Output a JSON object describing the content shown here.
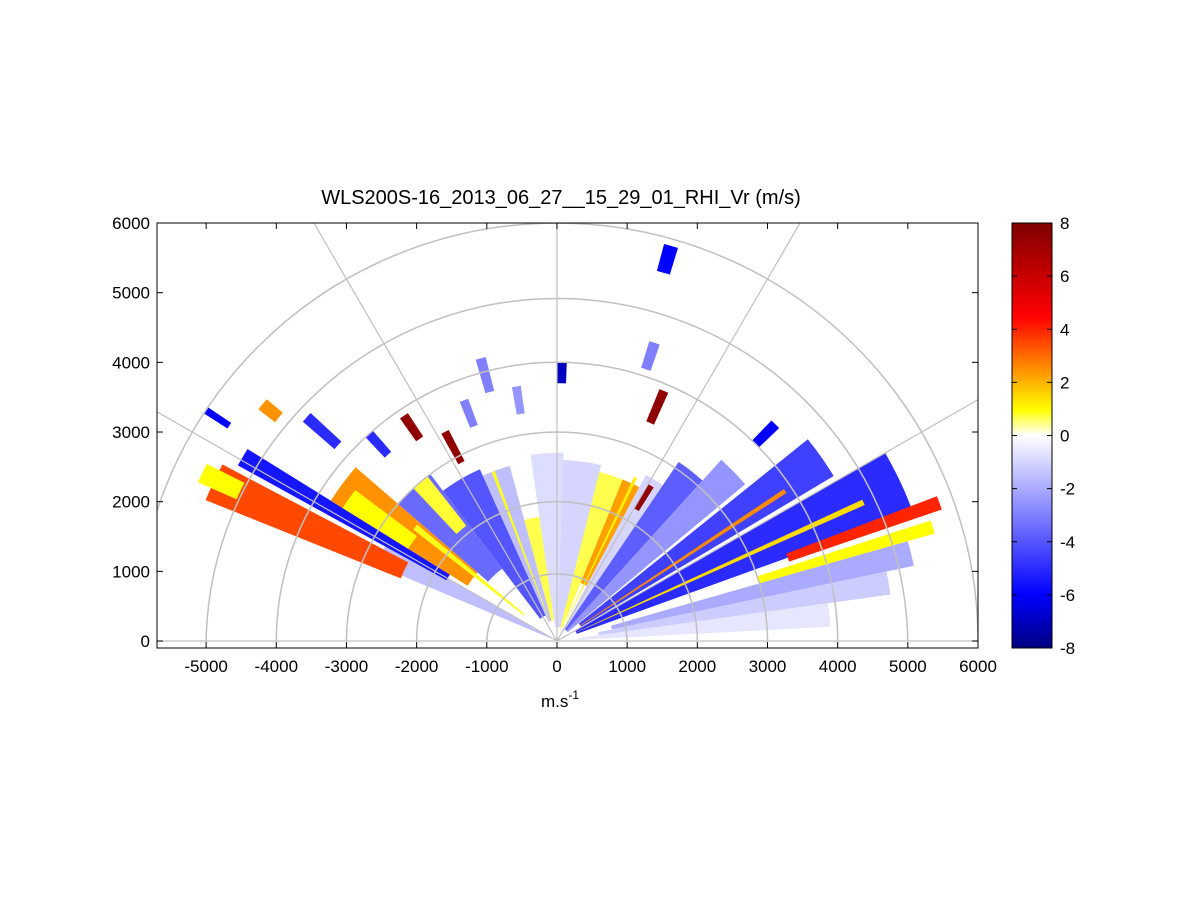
{
  "chart_data": {
    "type": "heatmap",
    "subtype": "polar-rhi",
    "title": "WLS200S-16_2013_06_27__15_29_01_RHI_Vr (m/s)",
    "xlabel_base": "m.s",
    "xlabel_exp": "-1",
    "xlim": [
      -5700,
      6000
    ],
    "ylim": [
      -100,
      6000
    ],
    "xticks": [
      -5000,
      -4000,
      -3000,
      -2000,
      -1000,
      0,
      1000,
      2000,
      3000,
      4000,
      5000,
      6000
    ],
    "yticks": [
      0,
      1000,
      2000,
      3000,
      4000,
      5000,
      6000
    ],
    "range_rings": [
      1000,
      2000,
      3000,
      4000,
      5000,
      6000
    ],
    "spoke_angles_deg": [
      0,
      30,
      60,
      90,
      120,
      150,
      180
    ],
    "grid": true,
    "colorbar": {
      "min": -8,
      "max": 8,
      "ticks": [
        -8,
        -6,
        -4,
        -2,
        0,
        2,
        4,
        6,
        8
      ],
      "colors": [
        "#00007f",
        "#0000ff",
        "#ffffff",
        "#ffff00",
        "#ff0000",
        "#7f0000"
      ]
    },
    "sectors": [
      {
        "az": [
          150,
          157
        ],
        "r": [
          100,
          2800
        ],
        "v": -1.5
      },
      {
        "az": [
          152,
          158
        ],
        "r": [
          2400,
          5400
        ],
        "v": 3.5
      },
      {
        "az": [
          153,
          156
        ],
        "r": [
          5000,
          5600
        ],
        "v": 1
      },
      {
        "az": [
          148,
          151
        ],
        "r": [
          1800,
          5200
        ],
        "v": -5.5
      },
      {
        "az": [
          139,
          148
        ],
        "r": [
          1500,
          3800
        ],
        "v": 2.5
      },
      {
        "az": [
          143,
          148
        ],
        "r": [
          2500,
          3600
        ],
        "v": 1
      },
      {
        "az": [
          127,
          139
        ],
        "r": [
          1300,
          3000
        ],
        "v": -3.5
      },
      {
        "az": [
          128,
          133
        ],
        "r": [
          2100,
          3000
        ],
        "v": 0.8
      },
      {
        "az": [
          114,
          127
        ],
        "r": [
          400,
          2700
        ],
        "v": -4
      },
      {
        "az": [
          105,
          114
        ],
        "r": [
          300,
          2600
        ],
        "v": -1.5
      },
      {
        "az": [
          98,
          105
        ],
        "r": [
          300,
          1800
        ],
        "v": 0.7
      },
      {
        "az": [
          88,
          98
        ],
        "r": [
          200,
          2700
        ],
        "v": -0.8
      },
      {
        "az": [
          76,
          88
        ],
        "r": [
          200,
          2600
        ],
        "v": -1
      },
      {
        "az": [
          68,
          76
        ],
        "r": [
          200,
          2500
        ],
        "v": 0.7
      },
      {
        "az": [
          62,
          68
        ],
        "r": [
          900,
          2500
        ],
        "v": 2.3
      },
      {
        "az": [
          56,
          62
        ],
        "r": [
          200,
          2700
        ],
        "v": -1
      },
      {
        "az": [
          48,
          56
        ],
        "r": [
          200,
          3100
        ],
        "v": -3.8
      },
      {
        "az": [
          40,
          48
        ],
        "r": [
          200,
          3500
        ],
        "v": -2.5
      },
      {
        "az": [
          31,
          39
        ],
        "r": [
          400,
          4600
        ],
        "v": -4.5
      },
      {
        "az": [
          20,
          30
        ],
        "r": [
          300,
          5400
        ],
        "v": -5
      },
      {
        "az": [
          19,
          21
        ],
        "r": [
          3500,
          5800
        ],
        "v": 4
      },
      {
        "az": [
          16,
          18
        ],
        "r": [
          3000,
          5600
        ],
        "v": 1
      },
      {
        "az": [
          12,
          16
        ],
        "r": [
          800,
          5200
        ],
        "v": -2
      },
      {
        "az": [
          8,
          12
        ],
        "r": [
          600,
          4800
        ],
        "v": -1.2
      },
      {
        "az": [
          3,
          8
        ],
        "r": [
          300,
          3900
        ],
        "v": -0.6
      },
      {
        "az": [
          140,
          142
        ],
        "r": [
          600,
          2600
        ],
        "v": 0.9
      },
      {
        "az": [
          110,
          111
        ],
        "r": [
          300,
          2600
        ],
        "v": 0.9
      },
      {
        "az": [
          64,
          65
        ],
        "r": [
          300,
          2600
        ],
        "v": 1.2
      },
      {
        "az": [
          24,
          25
        ],
        "r": [
          300,
          4800
        ],
        "v": 1.5
      },
      {
        "az": [
          33,
          34
        ],
        "r": [
          400,
          3900
        ],
        "v": 2.6
      },
      {
        "az": [
          131,
          133
        ],
        "r": [
          3600,
          4000
        ],
        "v": -5
      },
      {
        "az": [
          123,
          125
        ],
        "r": [
          3500,
          3900
        ],
        "v": 7.5
      },
      {
        "az": [
          117,
          119
        ],
        "r": [
          2900,
          3400
        ],
        "v": 7.5
      },
      {
        "az": [
          110,
          112
        ],
        "r": [
          3300,
          3700
        ],
        "v": -3
      },
      {
        "az": [
          104,
          106
        ],
        "r": [
          3700,
          4200
        ],
        "v": -3
      },
      {
        "az": [
          98,
          100
        ],
        "r": [
          3300,
          3700
        ],
        "v": -2.5
      },
      {
        "az": [
          88,
          90
        ],
        "r": [
          3700,
          4000
        ],
        "v": -7
      },
      {
        "az": [
          73,
          75
        ],
        "r": [
          5500,
          5900
        ],
        "v": -6
      },
      {
        "az": [
          71,
          73
        ],
        "r": [
          4100,
          4500
        ],
        "v": -3
      },
      {
        "az": [
          66,
          68
        ],
        "r": [
          3400,
          3900
        ],
        "v": 7.5
      },
      {
        "az": [
          58,
          60
        ],
        "r": [
          2200,
          2600
        ],
        "v": 7.5
      },
      {
        "az": [
          44,
          46
        ],
        "r": [
          4000,
          4400
        ],
        "v": -6
      },
      {
        "az": [
          140,
          142
        ],
        "r": [
          5100,
          5400
        ],
        "v": 2.5
      },
      {
        "az": [
          137,
          139
        ],
        "r": [
          4200,
          4800
        ],
        "v": -5
      },
      {
        "az": [
          146,
          147
        ],
        "r": [
          5600,
          6000
        ],
        "v": -6
      }
    ]
  }
}
